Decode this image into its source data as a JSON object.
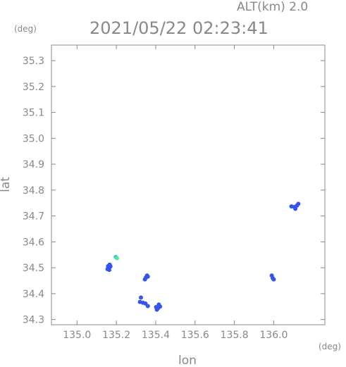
{
  "header": {
    "altitude": "ALT(km) 2.0",
    "timestamp": "2021/05/22 02:23:41"
  },
  "chart_data": {
    "type": "scatter",
    "title": "2021/05/22 02:23:41",
    "subtitle": "ALT(km) 2.0",
    "xlabel": "lon",
    "ylabel": "lat",
    "x_unit": "(deg)",
    "y_unit": "(deg)",
    "xlim": [
      134.87,
      136.26
    ],
    "ylim": [
      34.28,
      35.36
    ],
    "x_ticks": [
      "135.0",
      "135.2",
      "135.4",
      "135.6",
      "135.8",
      "136.0"
    ],
    "y_ticks": [
      "34.3",
      "34.4",
      "34.5",
      "34.6",
      "34.7",
      "34.8",
      "34.9",
      "35.0",
      "35.1",
      "35.2",
      "35.3"
    ],
    "grid": false,
    "colors": {
      "axis": "#888888",
      "echo_blue": "#3355ee",
      "echo_light_blue": "#33bbff",
      "echo_green": "#55ee77"
    },
    "points": [
      {
        "lon": 135.155,
        "lat": 34.495,
        "color": "echo_blue"
      },
      {
        "lon": 135.162,
        "lat": 34.5,
        "color": "echo_blue"
      },
      {
        "lon": 135.17,
        "lat": 34.505,
        "color": "echo_blue"
      },
      {
        "lon": 135.166,
        "lat": 34.512,
        "color": "echo_blue"
      },
      {
        "lon": 135.158,
        "lat": 34.506,
        "color": "echo_blue"
      },
      {
        "lon": 135.164,
        "lat": 34.492,
        "color": "echo_blue"
      },
      {
        "lon": 135.197,
        "lat": 34.542,
        "color": "echo_light_blue"
      },
      {
        "lon": 135.203,
        "lat": 34.537,
        "color": "echo_green"
      },
      {
        "lon": 135.35,
        "lat": 34.462,
        "color": "echo_blue"
      },
      {
        "lon": 135.356,
        "lat": 34.47,
        "color": "echo_blue"
      },
      {
        "lon": 135.345,
        "lat": 34.455,
        "color": "echo_blue"
      },
      {
        "lon": 135.36,
        "lat": 34.466,
        "color": "echo_blue"
      },
      {
        "lon": 135.32,
        "lat": 34.368,
        "color": "echo_blue"
      },
      {
        "lon": 135.335,
        "lat": 34.365,
        "color": "echo_blue"
      },
      {
        "lon": 135.348,
        "lat": 34.362,
        "color": "echo_blue"
      },
      {
        "lon": 135.36,
        "lat": 34.352,
        "color": "echo_blue"
      },
      {
        "lon": 135.325,
        "lat": 34.385,
        "color": "echo_blue"
      },
      {
        "lon": 135.402,
        "lat": 34.348,
        "color": "echo_blue"
      },
      {
        "lon": 135.412,
        "lat": 34.344,
        "color": "echo_blue"
      },
      {
        "lon": 135.422,
        "lat": 34.35,
        "color": "echo_blue"
      },
      {
        "lon": 135.416,
        "lat": 34.358,
        "color": "echo_blue"
      },
      {
        "lon": 135.406,
        "lat": 34.338,
        "color": "echo_blue"
      },
      {
        "lon": 135.99,
        "lat": 34.47,
        "color": "echo_blue"
      },
      {
        "lon": 135.995,
        "lat": 34.46,
        "color": "echo_blue"
      },
      {
        "lon": 136.0,
        "lat": 34.455,
        "color": "echo_blue"
      },
      {
        "lon": 136.09,
        "lat": 34.737,
        "color": "echo_blue"
      },
      {
        "lon": 136.105,
        "lat": 34.735,
        "color": "echo_blue"
      },
      {
        "lon": 136.118,
        "lat": 34.74,
        "color": "echo_blue"
      },
      {
        "lon": 136.125,
        "lat": 34.747,
        "color": "echo_blue"
      },
      {
        "lon": 136.11,
        "lat": 34.728,
        "color": "echo_blue"
      }
    ]
  }
}
